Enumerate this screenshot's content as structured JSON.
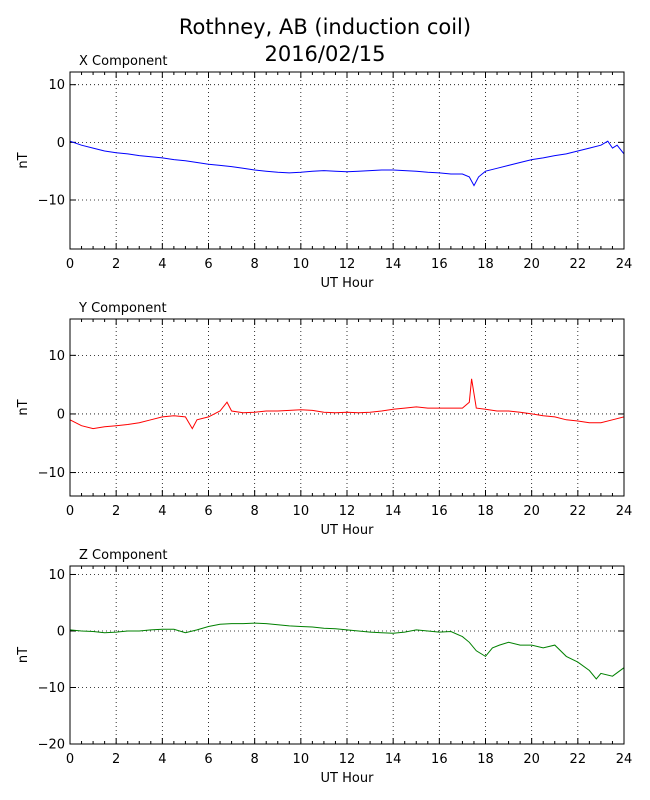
{
  "title_line1": "Rothney, AB (induction coil)",
  "title_line2": "2016/02/15",
  "chart_data": [
    {
      "type": "line",
      "title": "X Component",
      "xlabel": "UT Hour",
      "ylabel": "nT",
      "xlim": [
        0,
        24
      ],
      "ylim": [
        -18.5,
        12.2
      ],
      "xticks": [
        0,
        2,
        4,
        6,
        8,
        10,
        12,
        14,
        16,
        18,
        20,
        22,
        24
      ],
      "yticks": [
        10,
        0,
        -10
      ],
      "grid": true,
      "series": [
        {
          "color": "#0000ff",
          "x": [
            0,
            0.5,
            1,
            1.5,
            2,
            2.5,
            3,
            3.5,
            4,
            4.5,
            5,
            5.5,
            6,
            6.5,
            7,
            7.5,
            8,
            8.5,
            9,
            9.5,
            10,
            10.5,
            11,
            11.5,
            12,
            12.5,
            13,
            13.5,
            14,
            14.5,
            15,
            15.5,
            16,
            16.5,
            17,
            17.3,
            17.5,
            17.7,
            18,
            18.5,
            19,
            19.5,
            20,
            20.5,
            21,
            21.5,
            22,
            22.5,
            23,
            23.3,
            23.5,
            23.7,
            24
          ],
          "y": [
            0.2,
            -0.5,
            -1.0,
            -1.5,
            -1.8,
            -2.0,
            -2.3,
            -2.5,
            -2.7,
            -3.0,
            -3.2,
            -3.5,
            -3.8,
            -4.0,
            -4.2,
            -4.5,
            -4.8,
            -5.0,
            -5.2,
            -5.3,
            -5.2,
            -5.0,
            -4.9,
            -5.0,
            -5.1,
            -5.0,
            -4.9,
            -4.8,
            -4.8,
            -4.9,
            -5.0,
            -5.2,
            -5.3,
            -5.5,
            -5.5,
            -6.0,
            -7.5,
            -6.0,
            -5.0,
            -4.5,
            -4.0,
            -3.5,
            -3.0,
            -2.7,
            -2.3,
            -2.0,
            -1.5,
            -1.0,
            -0.5,
            0.2,
            -1.0,
            -0.5,
            -2.0
          ]
        }
      ]
    },
    {
      "type": "line",
      "title": "Y Component",
      "xlabel": "UT Hour",
      "ylabel": "nT",
      "xlim": [
        0,
        24
      ],
      "ylim": [
        -14,
        16.2
      ],
      "xticks": [
        0,
        2,
        4,
        6,
        8,
        10,
        12,
        14,
        16,
        18,
        20,
        22,
        24
      ],
      "yticks": [
        10,
        0,
        -10
      ],
      "grid": true,
      "series": [
        {
          "color": "#ff0000",
          "x": [
            0,
            0.5,
            1,
            1.5,
            2,
            2.5,
            3,
            3.5,
            4,
            4.5,
            5,
            5.3,
            5.5,
            6,
            6.5,
            6.8,
            7,
            7.5,
            8,
            8.5,
            9,
            9.5,
            10,
            10.5,
            11,
            11.5,
            12,
            12.5,
            13,
            13.5,
            14,
            14.5,
            15,
            15.5,
            16,
            16.5,
            17,
            17.3,
            17.4,
            17.6,
            18,
            18.5,
            19,
            19.5,
            20,
            20.5,
            21,
            21.5,
            22,
            22.5,
            23,
            23.5,
            24
          ],
          "y": [
            -1.0,
            -2.0,
            -2.5,
            -2.2,
            -2.0,
            -1.8,
            -1.5,
            -1.0,
            -0.5,
            -0.3,
            -0.5,
            -2.5,
            -1.0,
            -0.5,
            0.5,
            2.0,
            0.5,
            0.2,
            0.3,
            0.5,
            0.5,
            0.6,
            0.7,
            0.6,
            0.3,
            0.2,
            0.3,
            0.2,
            0.3,
            0.5,
            0.8,
            1.0,
            1.2,
            1.0,
            1.0,
            1.0,
            1.0,
            2.0,
            6.0,
            1.0,
            0.8,
            0.5,
            0.5,
            0.3,
            0.0,
            -0.3,
            -0.5,
            -1.0,
            -1.2,
            -1.5,
            -1.5,
            -1.0,
            -0.5
          ]
        }
      ]
    },
    {
      "type": "line",
      "title": "Z Component",
      "xlabel": "UT Hour",
      "ylabel": "nT",
      "xlim": [
        0,
        24
      ],
      "ylim": [
        -20,
        11.5
      ],
      "xticks": [
        0,
        2,
        4,
        6,
        8,
        10,
        12,
        14,
        16,
        18,
        20,
        22,
        24
      ],
      "yticks": [
        10,
        0,
        -10,
        -20
      ],
      "grid": true,
      "series": [
        {
          "color": "#008000",
          "x": [
            0,
            0.5,
            1,
            1.5,
            2,
            2.5,
            3,
            3.5,
            4,
            4.5,
            5,
            5.5,
            6,
            6.5,
            7,
            7.5,
            8,
            8.5,
            9,
            9.5,
            10,
            10.5,
            11,
            11.5,
            12,
            12.5,
            13,
            13.5,
            14,
            14.5,
            15,
            15.5,
            16,
            16.5,
            17,
            17.3,
            17.6,
            18,
            18.3,
            18.6,
            19,
            19.5,
            20,
            20.5,
            21,
            21.5,
            22,
            22.5,
            22.8,
            23,
            23.5,
            24
          ],
          "y": [
            0.2,
            0.0,
            -0.1,
            -0.3,
            -0.2,
            0.0,
            0.0,
            0.2,
            0.3,
            0.3,
            -0.3,
            0.2,
            0.8,
            1.2,
            1.3,
            1.3,
            1.4,
            1.3,
            1.1,
            0.9,
            0.8,
            0.7,
            0.5,
            0.4,
            0.2,
            0.0,
            -0.2,
            -0.3,
            -0.4,
            -0.2,
            0.2,
            0.0,
            -0.2,
            -0.1,
            -1.0,
            -2.0,
            -3.5,
            -4.5,
            -3.0,
            -2.5,
            -2.0,
            -2.5,
            -2.5,
            -3.0,
            -2.5,
            -4.5,
            -5.5,
            -7.0,
            -8.5,
            -7.5,
            -8.0,
            -6.5
          ]
        }
      ]
    }
  ]
}
